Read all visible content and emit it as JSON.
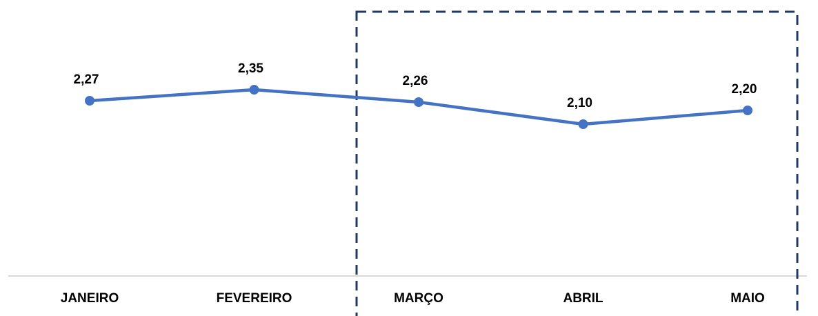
{
  "chart_data": {
    "type": "line",
    "categories": [
      "JANEIRO",
      "FEVEREIRO",
      "MARÇO",
      "ABRIL",
      "MAIO"
    ],
    "values": [
      2.27,
      2.35,
      2.26,
      2.1,
      2.2
    ],
    "data_labels": [
      "2,27",
      "2,35",
      "2,26",
      "2,10",
      "2,20"
    ],
    "title": "",
    "xlabel": "",
    "ylabel": "",
    "ylim": [
      1.0,
      3.0
    ],
    "grid": false,
    "legend": "none",
    "highlight_range": [
      "MARÇO",
      "MAIO"
    ],
    "colors": {
      "line": "#4472C4",
      "highlight_border": "#203864",
      "axis": "#D9D9D9"
    }
  }
}
